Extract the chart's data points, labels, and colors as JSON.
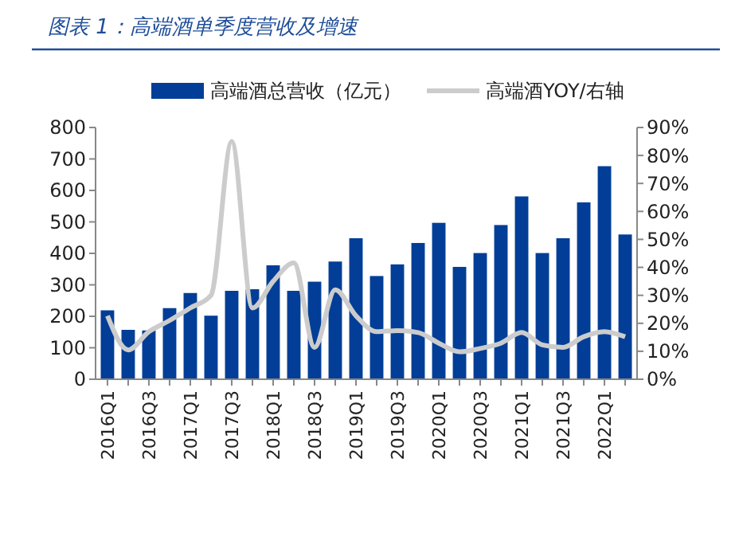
{
  "chart_data": {
    "type": "bar",
    "title": "图表 1：高端酒单季度营收及增速",
    "categories": [
      "2016Q1",
      null,
      "2016Q3",
      null,
      "2017Q1",
      null,
      "2017Q3",
      null,
      "2018Q1",
      null,
      "2018Q3",
      null,
      "2019Q1",
      null,
      "2019Q3",
      null,
      "2020Q1",
      null,
      "2020Q3",
      null,
      "2021Q1",
      null,
      "2021Q3",
      null,
      "2022Q1",
      null
    ],
    "series": [
      {
        "name": "高端酒总营收（亿元）",
        "color": "#023e97",
        "values": [
          219,
          157,
          155,
          226,
          274,
          202,
          281,
          286,
          362,
          281,
          310,
          374,
          448,
          328,
          365,
          433,
          497,
          357,
          401,
          490,
          581,
          401,
          448,
          562,
          677,
          460
        ]
      },
      {
        "name": "高端酒YOY/右轴",
        "type": "line",
        "axis": "y2",
        "color": "#cccccc",
        "values": [
          22.7,
          10.5,
          17,
          21,
          25.5,
          30,
          85,
          25.5,
          35,
          41.6,
          11.4,
          32,
          22.7,
          17,
          17.4,
          16.7,
          12.9,
          9.8,
          11,
          12.9,
          16.7,
          12.3,
          11.4,
          15.2,
          17,
          15.2
        ]
      }
    ],
    "ylim": [
      0,
      800
    ],
    "yticks": [
      0,
      100,
      200,
      300,
      400,
      500,
      600,
      700,
      800
    ],
    "y2lim": [
      0,
      90
    ],
    "y2ticks": [
      {
        "value": 0,
        "label": "0%"
      },
      {
        "value": 10,
        "label": "10%"
      },
      {
        "value": 20,
        "label": "20%"
      },
      {
        "value": 30,
        "label": "30%"
      },
      {
        "value": 40,
        "label": "40%"
      },
      {
        "value": 50,
        "label": "50%"
      },
      {
        "value": 60,
        "label": "60%"
      },
      {
        "value": 70,
        "label": "70%"
      },
      {
        "value": 80,
        "label": "80%"
      },
      {
        "value": 90,
        "label": "90%"
      }
    ],
    "grid": false,
    "legend": "top",
    "line_style": "solid",
    "marker": "none"
  }
}
